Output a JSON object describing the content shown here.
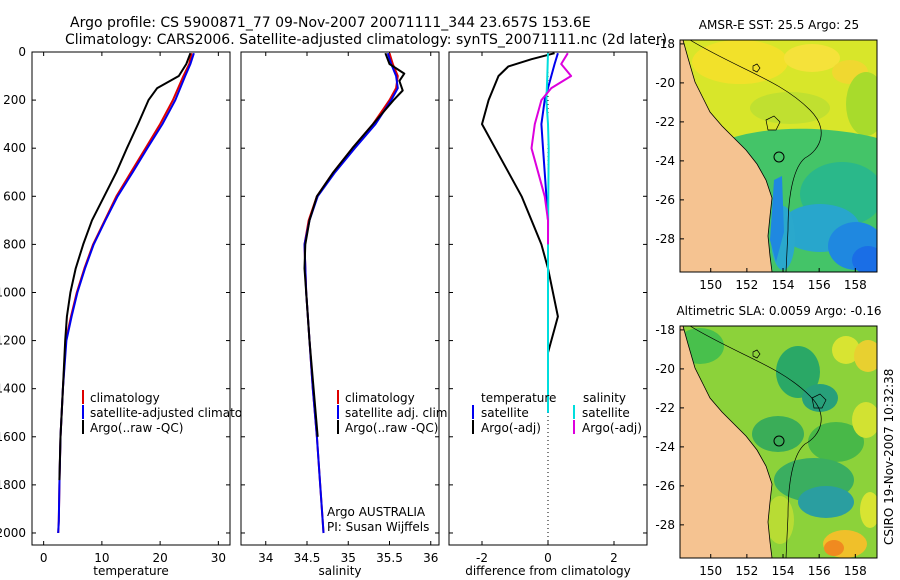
{
  "header": {
    "title_line1": "Argo profile: CS 5900871_77 09-Nov-2007 20071111_344 23.657S 153.6E",
    "title_line2": "Climatology: CARS2006. Satellite-adjusted climatology: synTS_20071111.nc (2d later)"
  },
  "colors": {
    "climatology": "#dd0000",
    "satellite": "#0000ee",
    "argo": "#000000",
    "satellite_diff": "#00dddd",
    "argo_diff_salinity": "#dd00dd",
    "land": "#f5c391"
  },
  "credits": {
    "program": "Argo AUSTRALIA",
    "pi": "PI: Susan Wijffels",
    "stamp": "CSIRO 19-Nov-2007 10:32:38"
  },
  "chart_data": [
    {
      "id": "temperature",
      "type": "line",
      "xlabel": "temperature",
      "xlim": [
        -2,
        32
      ],
      "xticks": [
        0,
        10,
        20,
        30
      ],
      "ylim": [
        2050,
        0
      ],
      "yticks": [
        0,
        200,
        400,
        600,
        800,
        1000,
        1200,
        1400,
        1600,
        1800,
        2000
      ],
      "legend": {
        "position": "lower-right",
        "entries": [
          "climatology",
          "satellite-adjusted climatology",
          "Argo(..raw -QC)"
        ]
      },
      "series": [
        {
          "name": "climatology",
          "color_key": "climatology",
          "x": [
            25.4,
            25.0,
            24.0,
            22.2,
            20.0,
            17.5,
            15.0,
            12.5,
            10.5,
            8.5,
            7.0,
            5.7,
            4.7,
            3.8,
            3.3,
            2.9,
            2.7,
            2.6,
            2.5
          ],
          "y": [
            5,
            50,
            100,
            200,
            300,
            400,
            500,
            600,
            700,
            800,
            900,
            1000,
            1100,
            1200,
            1400,
            1600,
            1800,
            1950,
            2000
          ]
        },
        {
          "name": "satellite-adjusted climatology",
          "color_key": "satellite",
          "x": [
            25.8,
            25.2,
            24.3,
            22.6,
            20.4,
            17.8,
            15.3,
            12.7,
            10.6,
            8.6,
            7.1,
            5.8,
            4.8,
            3.9,
            3.3,
            2.9,
            2.7,
            2.6,
            2.5
          ],
          "y": [
            5,
            50,
            100,
            200,
            300,
            400,
            500,
            600,
            700,
            800,
            900,
            1000,
            1100,
            1200,
            1400,
            1600,
            1800,
            1950,
            2000
          ]
        },
        {
          "name": "Argo(..raw -QC)",
          "color_key": "argo",
          "x": [
            25.2,
            24.5,
            23.2,
            19.5,
            18.0,
            16.2,
            14.3,
            12.5,
            10.4,
            8.3,
            6.8,
            5.5,
            4.6,
            4.0,
            3.7,
            3.3,
            2.9,
            2.7
          ],
          "y": [
            5,
            50,
            100,
            150,
            200,
            300,
            400,
            500,
            600,
            700,
            800,
            900,
            1000,
            1100,
            1200,
            1400,
            1600,
            1780
          ]
        }
      ]
    },
    {
      "id": "salinity",
      "type": "line",
      "xlabel": "salinity",
      "xlim": [
        33.7,
        36.1
      ],
      "xticks": [
        34,
        34.5,
        35,
        35.5,
        36
      ],
      "ylim": [
        2050,
        0
      ],
      "yticks": [
        0,
        200,
        400,
        600,
        800,
        1000,
        1200,
        1400,
        1600,
        1800,
        2000
      ],
      "legend": {
        "position": "lower-right",
        "entries": [
          "climatology",
          "satellite adj. clim.",
          "Argo(..raw -QC)"
        ]
      },
      "series": [
        {
          "name": "climatology",
          "color_key": "climatology",
          "x": [
            35.5,
            35.54,
            35.6,
            35.58,
            35.5,
            35.3,
            35.05,
            34.82,
            34.62,
            34.52,
            34.47,
            34.49,
            34.53,
            34.57,
            34.62,
            34.66,
            34.69,
            34.7
          ],
          "y": [
            5,
            50,
            100,
            150,
            200,
            300,
            400,
            500,
            600,
            700,
            800,
            1000,
            1200,
            1400,
            1600,
            1800,
            1950,
            2000
          ]
        },
        {
          "name": "satellite adj. clim.",
          "color_key": "satellite",
          "x": [
            35.48,
            35.52,
            35.58,
            35.6,
            35.52,
            35.33,
            35.08,
            34.84,
            34.63,
            34.53,
            34.47,
            34.49,
            34.53,
            34.57,
            34.62,
            34.66,
            34.69,
            34.7
          ],
          "y": [
            5,
            50,
            100,
            150,
            200,
            300,
            400,
            500,
            600,
            700,
            800,
            1000,
            1200,
            1400,
            1600,
            1800,
            1950,
            2000
          ]
        },
        {
          "name": "Argo(..raw -QC)",
          "color_key": "argo",
          "x": [
            35.45,
            35.5,
            35.68,
            35.62,
            35.66,
            35.55,
            35.3,
            35.05,
            34.82,
            34.62,
            34.53,
            34.48,
            34.47,
            34.49,
            34.53,
            34.58,
            34.63
          ],
          "y": [
            5,
            50,
            90,
            120,
            160,
            200,
            300,
            400,
            500,
            600,
            700,
            800,
            900,
            1000,
            1200,
            1400,
            1600
          ]
        }
      ]
    },
    {
      "id": "difference",
      "type": "line",
      "xlabel": "difference from climatology",
      "xlim": [
        -3,
        3
      ],
      "xticks": [
        -2,
        0,
        2
      ],
      "ylim": [
        2050,
        0
      ],
      "yticks": [
        0,
        200,
        400,
        600,
        800,
        1000,
        1200,
        1400,
        1600,
        1800,
        2000
      ],
      "reference_line_x": 0,
      "legend": {
        "position": "middle",
        "columns": [
          "temperature",
          "salinity"
        ],
        "entries": [
          "satellite",
          "Argo(-adj)",
          "satellite",
          "Argo(-adj)"
        ]
      },
      "series": [
        {
          "name": "temperature satellite",
          "color_key": "satellite",
          "x": [
            0.3,
            0.2,
            0.1,
            -0.1,
            -0.2,
            -0.15,
            -0.1,
            -0.05,
            0.0,
            0.0,
            0.0,
            0.0,
            0.0
          ],
          "y": [
            5,
            50,
            100,
            200,
            300,
            400,
            500,
            600,
            700,
            800,
            1000,
            1200,
            1500
          ]
        },
        {
          "name": "temperature Argo(-adj)",
          "color_key": "argo",
          "x": [
            0.2,
            -0.5,
            -1.2,
            -1.5,
            -1.8,
            -2.0,
            -1.6,
            -1.2,
            -0.8,
            -0.5,
            -0.2,
            0.0,
            0.3,
            0.2,
            0.1,
            0.0
          ],
          "y": [
            5,
            30,
            60,
            100,
            200,
            300,
            400,
            500,
            600,
            700,
            800,
            900,
            1100,
            1150,
            1200,
            1250
          ]
        },
        {
          "name": "salinity satellite",
          "color_key": "satellite_diff",
          "x": [
            0.0,
            -0.02,
            -0.05,
            0.0,
            0.02,
            0.01,
            0.0,
            0.0,
            0.0,
            0.0
          ],
          "y": [
            5,
            100,
            200,
            300,
            400,
            600,
            800,
            1000,
            1200,
            1500
          ]
        },
        {
          "name": "salinity Argo(-adj)",
          "color_key": "argo_diff_salinity",
          "x": [
            0.6,
            0.4,
            0.7,
            0.1,
            -0.2,
            -0.4,
            -0.5,
            -0.3,
            -0.1,
            0.0,
            0.0
          ],
          "y": [
            5,
            50,
            100,
            150,
            200,
            300,
            400,
            500,
            600,
            700,
            800
          ]
        }
      ]
    }
  ],
  "maps": [
    {
      "id": "sst",
      "title": "AMSR-E SST: 25.5 Argo: 25",
      "lon_range": [
        148.3,
        159.2
      ],
      "lat_range": [
        -29.7,
        -17.8
      ],
      "xticks": [
        150,
        152,
        154,
        156,
        158
      ],
      "yticks": [
        -18,
        -20,
        -22,
        -24,
        -26,
        -28
      ],
      "float_position": {
        "lon": 153.6,
        "lat": -23.657
      }
    },
    {
      "id": "sla",
      "title": "Altimetric SLA: 0.0059 Argo: -0.16",
      "lon_range": [
        148.3,
        159.2
      ],
      "lat_range": [
        -29.7,
        -17.8
      ],
      "xticks": [
        150,
        152,
        154,
        156,
        158
      ],
      "yticks": [
        -18,
        -20,
        -22,
        -24,
        -26,
        -28
      ],
      "float_position": {
        "lon": 153.6,
        "lat": -23.657
      }
    }
  ]
}
